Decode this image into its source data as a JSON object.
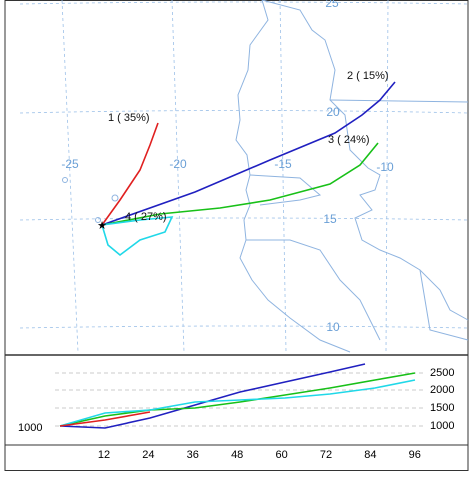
{
  "map": {
    "lon_labels": [
      "-25",
      "-20",
      "-15",
      "-10"
    ],
    "lat_labels": [
      "25",
      "20",
      "15",
      "10"
    ],
    "clusters": [
      "1 ( 35%)",
      "2 ( 15%)",
      "3 ( 24%)",
      "4 ( 27%)"
    ]
  },
  "height_panel": {
    "y_labels": [
      "2500",
      "2000",
      "1500",
      "1000"
    ],
    "start_label": "1000",
    "x_labels": [
      "12",
      "24",
      "36",
      "48",
      "60",
      "72",
      "84",
      "96"
    ]
  }
}
